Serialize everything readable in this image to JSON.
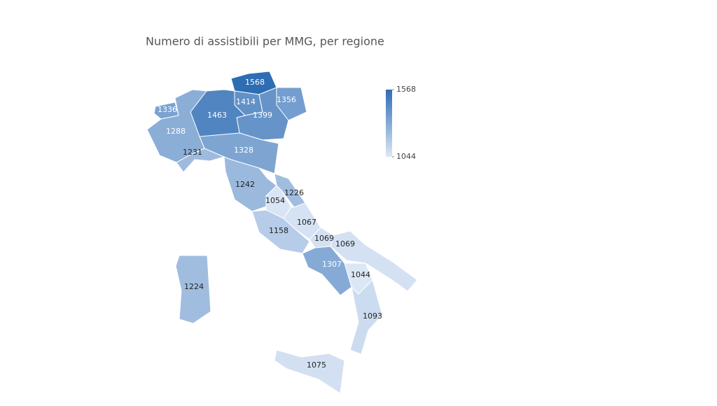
{
  "chart_data": {
    "type": "choropleth",
    "title": "Numero di assistibili per MMG, per regione",
    "values": [
      1568,
      1414,
      1356,
      1399,
      1463,
      1336,
      1288,
      1231,
      1328,
      1242,
      1226,
      1054,
      1067,
      1158,
      1069,
      1069,
      1307,
      1044,
      1093,
      1075,
      1224
    ],
    "colorscale": [
      "#dce7f6",
      "#2e6db4"
    ],
    "zlim": [
      1044,
      1568
    ],
    "colorbar_ticks": [
      1044,
      1568
    ]
  }
}
